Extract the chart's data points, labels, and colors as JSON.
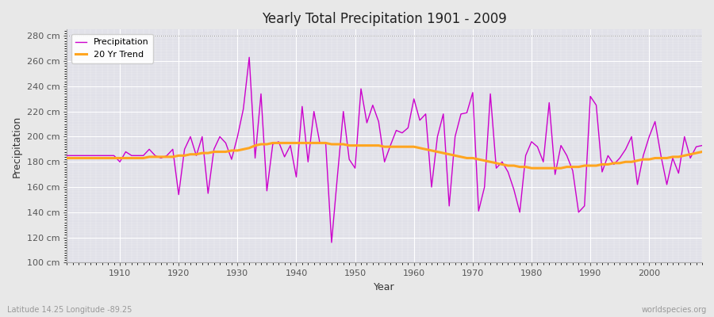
{
  "title": "Yearly Total Precipitation 1901 - 2009",
  "xlabel": "Year",
  "ylabel": "Precipitation",
  "subtitle_left": "Latitude 14.25 Longitude -89.25",
  "subtitle_right": "worldspecies.org",
  "ylim": [
    100,
    285
  ],
  "xlim": [
    1901,
    2009
  ],
  "yticks": [
    100,
    120,
    140,
    160,
    180,
    200,
    220,
    240,
    260,
    280
  ],
  "xticks": [
    1910,
    1920,
    1930,
    1940,
    1950,
    1960,
    1970,
    1980,
    1990,
    2000
  ],
  "precip_color": "#cc00cc",
  "trend_color": "#ffa520",
  "fig_bg_color": "#e8e8e8",
  "plot_bg_color": "#e0e0e8",
  "legend_labels": [
    "Precipitation",
    "20 Yr Trend"
  ],
  "years": [
    1901,
    1902,
    1903,
    1904,
    1905,
    1906,
    1907,
    1908,
    1909,
    1910,
    1911,
    1912,
    1913,
    1914,
    1915,
    1916,
    1917,
    1918,
    1919,
    1920,
    1921,
    1922,
    1923,
    1924,
    1925,
    1926,
    1927,
    1928,
    1929,
    1930,
    1931,
    1932,
    1933,
    1934,
    1935,
    1936,
    1937,
    1938,
    1939,
    1940,
    1941,
    1942,
    1943,
    1944,
    1945,
    1946,
    1947,
    1948,
    1949,
    1950,
    1951,
    1952,
    1953,
    1954,
    1955,
    1956,
    1957,
    1958,
    1959,
    1960,
    1961,
    1962,
    1963,
    1964,
    1965,
    1966,
    1967,
    1968,
    1969,
    1970,
    1971,
    1972,
    1973,
    1974,
    1975,
    1976,
    1977,
    1978,
    1979,
    1980,
    1981,
    1982,
    1983,
    1984,
    1985,
    1986,
    1987,
    1988,
    1989,
    1990,
    1991,
    1992,
    1993,
    1994,
    1995,
    1996,
    1997,
    1998,
    1999,
    2000,
    2001,
    2002,
    2003,
    2004,
    2005,
    2006,
    2007,
    2008,
    2009
  ],
  "precip": [
    185,
    185,
    185,
    185,
    185,
    185,
    185,
    185,
    185,
    180,
    188,
    185,
    185,
    185,
    190,
    185,
    183,
    185,
    190,
    154,
    190,
    200,
    185,
    200,
    155,
    190,
    200,
    195,
    182,
    200,
    222,
    263,
    183,
    234,
    157,
    194,
    196,
    184,
    193,
    168,
    224,
    180,
    220,
    195,
    195,
    116,
    169,
    220,
    182,
    175,
    238,
    211,
    225,
    212,
    180,
    193,
    205,
    203,
    207,
    230,
    213,
    218,
    160,
    200,
    218,
    145,
    200,
    218,
    219,
    235,
    141,
    160,
    234,
    175,
    180,
    172,
    158,
    140,
    185,
    196,
    192,
    180,
    227,
    170,
    193,
    185,
    173,
    140,
    145,
    232,
    225,
    172,
    185,
    178,
    183,
    190,
    200,
    162,
    185,
    200,
    212,
    185,
    162,
    183,
    171,
    200,
    183,
    192,
    193
  ],
  "trend": [
    183,
    183,
    183,
    183,
    183,
    183,
    183,
    183,
    183,
    183,
    183,
    183,
    183,
    183,
    184,
    184,
    184,
    184,
    184,
    185,
    185,
    186,
    186,
    187,
    187,
    188,
    188,
    188,
    189,
    189,
    190,
    191,
    193,
    194,
    194,
    195,
    195,
    195,
    195,
    195,
    195,
    195,
    195,
    195,
    195,
    194,
    194,
    194,
    193,
    193,
    193,
    193,
    193,
    193,
    192,
    192,
    192,
    192,
    192,
    192,
    191,
    190,
    189,
    188,
    187,
    186,
    185,
    184,
    183,
    183,
    182,
    181,
    180,
    179,
    178,
    177,
    177,
    176,
    176,
    175,
    175,
    175,
    175,
    175,
    175,
    176,
    176,
    176,
    177,
    177,
    177,
    178,
    178,
    179,
    179,
    180,
    180,
    181,
    182,
    182,
    183,
    183,
    183,
    184,
    184,
    185,
    186,
    187,
    188
  ]
}
